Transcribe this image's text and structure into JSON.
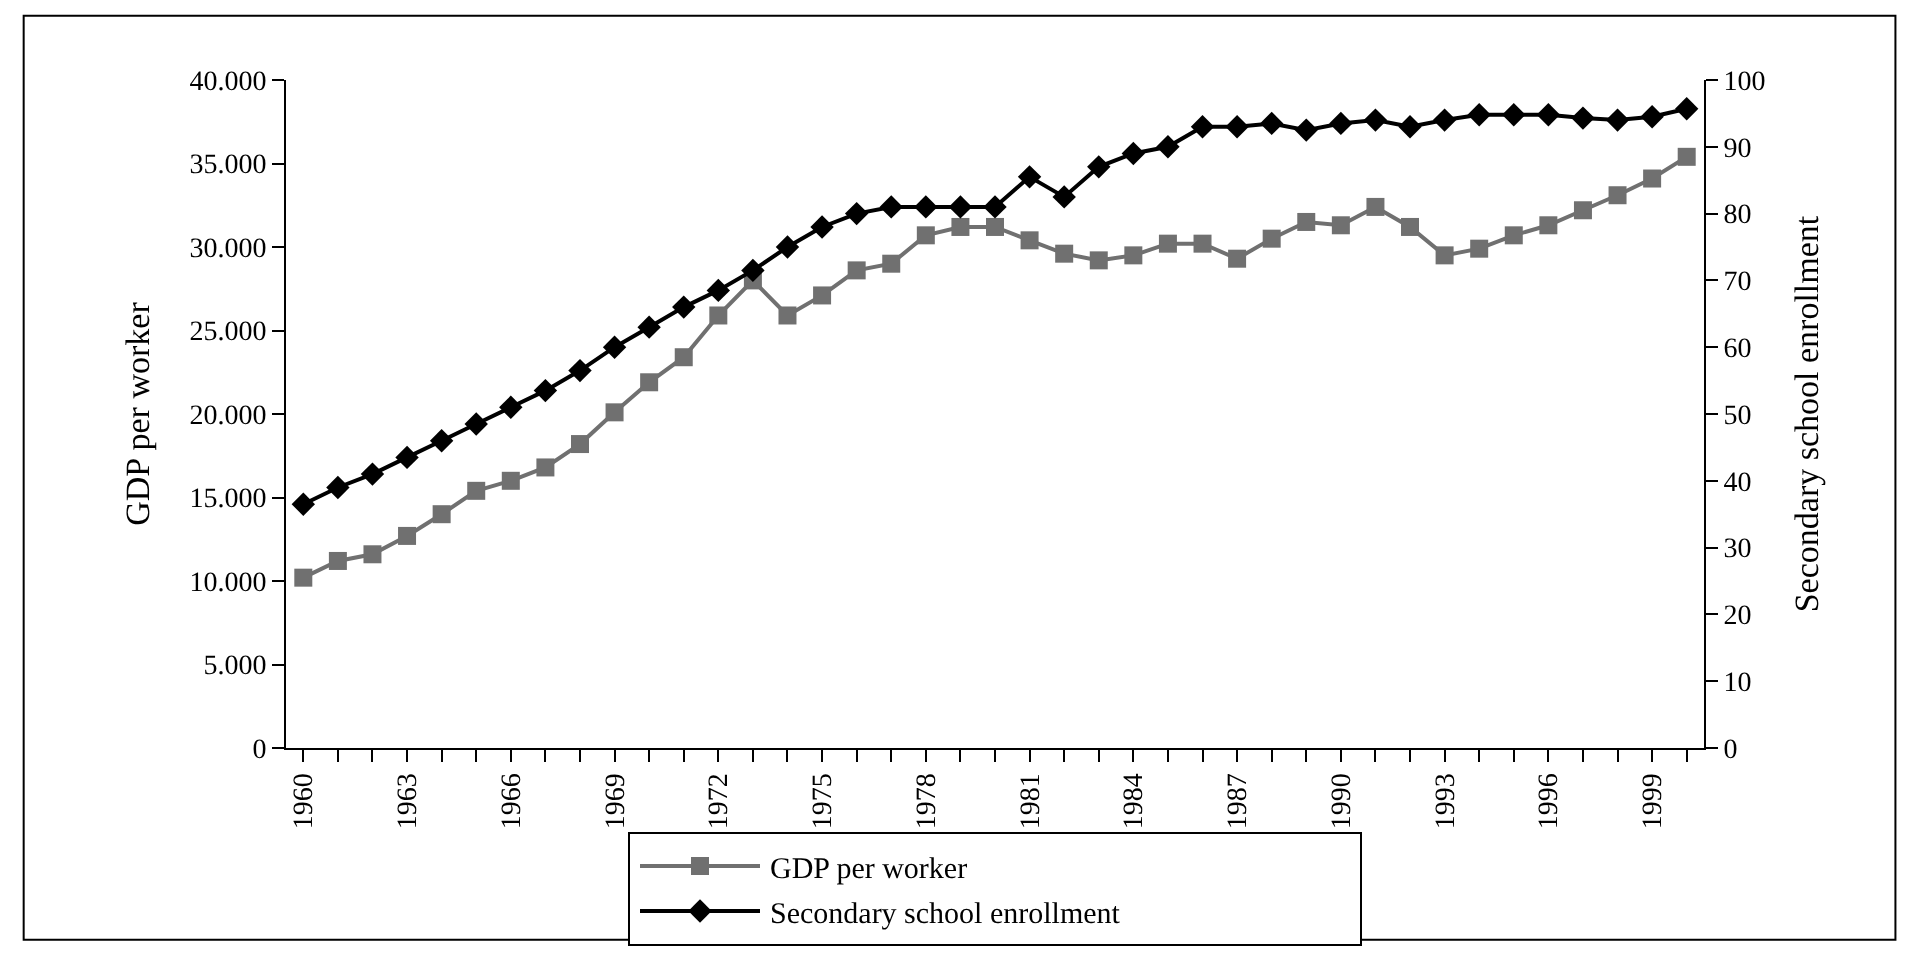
{
  "chart_data": {
    "type": "line",
    "ylabel": "GDP per worker",
    "y2label": "Secondary school enrollment",
    "x": [
      1960,
      1961,
      1962,
      1963,
      1964,
      1965,
      1966,
      1967,
      1968,
      1969,
      1970,
      1971,
      1972,
      1973,
      1974,
      1975,
      1976,
      1977,
      1978,
      1979,
      1980,
      1981,
      1982,
      1983,
      1984,
      1985,
      1986,
      1987,
      1988,
      1989,
      1990,
      1991,
      1992,
      1993,
      1994,
      1995,
      1996,
      1997,
      1998,
      1999,
      2000
    ],
    "series": [
      {
        "name": "GDP per worker",
        "color": "#707070",
        "marker": "square",
        "values": [
          10200,
          11200,
          11600,
          12700,
          14000,
          15400,
          16000,
          16800,
          18200,
          20100,
          21900,
          23400,
          25900,
          28000,
          25900,
          27100,
          28600,
          29000,
          30700,
          31200,
          31200,
          30400,
          29600,
          29200,
          29500,
          30200,
          30200,
          29300,
          30500,
          31500,
          31300,
          32400,
          31200,
          29500,
          29900,
          30700,
          31300,
          32200,
          33100,
          34100,
          35400
        ]
      },
      {
        "name": "Secondary school enrollment",
        "color": "#000000",
        "marker": "diamond",
        "axis": "y2",
        "values": [
          36.5,
          39,
          41,
          43.5,
          46,
          48.5,
          51,
          53.5,
          56.5,
          60,
          63,
          66,
          68.5,
          71.5,
          75,
          78,
          80,
          81,
          81,
          81,
          81,
          85.5,
          82.5,
          87,
          89,
          90,
          93,
          93,
          93.5,
          92.5,
          93.5,
          94,
          93,
          94,
          94.8,
          94.8,
          94.8,
          94.3,
          94,
          94.5,
          95.7
        ]
      }
    ],
    "xlim": [
      1959.5,
      2000.5
    ],
    "xticks": [
      {
        "value": 1960,
        "label": "1960"
      },
      {
        "value": 1961,
        "label": null
      },
      {
        "value": 1962,
        "label": null
      },
      {
        "value": 1963,
        "label": "1963"
      },
      {
        "value": 1964,
        "label": null
      },
      {
        "value": 1965,
        "label": null
      },
      {
        "value": 1966,
        "label": "1966"
      },
      {
        "value": 1967,
        "label": null
      },
      {
        "value": 1968,
        "label": null
      },
      {
        "value": 1969,
        "label": "1969"
      },
      {
        "value": 1970,
        "label": null
      },
      {
        "value": 1971,
        "label": null
      },
      {
        "value": 1972,
        "label": "1972"
      },
      {
        "value": 1973,
        "label": null
      },
      {
        "value": 1974,
        "label": null
      },
      {
        "value": 1975,
        "label": "1975"
      },
      {
        "value": 1976,
        "label": null
      },
      {
        "value": 1977,
        "label": null
      },
      {
        "value": 1978,
        "label": "1978"
      },
      {
        "value": 1979,
        "label": null
      },
      {
        "value": 1980,
        "label": null
      },
      {
        "value": 1981,
        "label": "1981"
      },
      {
        "value": 1982,
        "label": null
      },
      {
        "value": 1983,
        "label": null
      },
      {
        "value": 1984,
        "label": "1984"
      },
      {
        "value": 1985,
        "label": null
      },
      {
        "value": 1986,
        "label": null
      },
      {
        "value": 1987,
        "label": "1987"
      },
      {
        "value": 1988,
        "label": null
      },
      {
        "value": 1989,
        "label": null
      },
      {
        "value": 1990,
        "label": "1990"
      },
      {
        "value": 1991,
        "label": null
      },
      {
        "value": 1992,
        "label": null
      },
      {
        "value": 1993,
        "label": "1993"
      },
      {
        "value": 1994,
        "label": null
      },
      {
        "value": 1995,
        "label": null
      },
      {
        "value": 1996,
        "label": "1996"
      },
      {
        "value": 1997,
        "label": null
      },
      {
        "value": 1998,
        "label": null
      },
      {
        "value": 1999,
        "label": "1999"
      },
      {
        "value": 2000,
        "label": null
      }
    ],
    "ylim": [
      0,
      40000
    ],
    "yticks": [
      0,
      {
        "value": 5000,
        "label": "5.000"
      },
      {
        "value": 10000,
        "label": "10.000"
      },
      {
        "value": 15000,
        "label": "15.000"
      },
      {
        "value": 20000,
        "label": "20.000"
      },
      {
        "value": 25000,
        "label": "25.000"
      },
      {
        "value": 30000,
        "label": "30.000"
      },
      {
        "value": 35000,
        "label": "35.000"
      },
      {
        "value": 40000,
        "label": "40.000"
      }
    ],
    "y2lim": [
      0,
      100
    ],
    "y2ticks": [
      0,
      10,
      20,
      30,
      40,
      50,
      60,
      70,
      80,
      90,
      100
    ],
    "legend": "bottom",
    "line_style": "solid"
  }
}
